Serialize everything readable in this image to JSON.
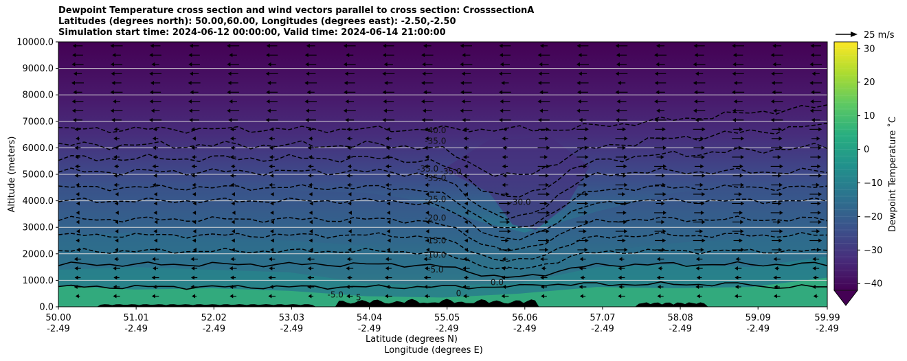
{
  "title_lines": [
    "Dewpoint Temperature cross section and wind vectors parallel to cross section: CrosssectionA",
    "Latitudes (degrees north): 50.00,60.00, Longitudes (degrees east): -2.50,-2.50",
    "Simulation start time: 2024-06-12 00:00:00, Valid time: 2024-06-14 21:00:00"
  ],
  "chart_data": {
    "type": "heatmap",
    "ylabel": "Altitude (meters)",
    "xlabel_line1": "Latitude (degrees N)",
    "xlabel_line2": "Longitude (degrees E)",
    "ylim": [
      0,
      10000
    ],
    "y_ticks": [
      "0.0",
      "1000.0",
      "2000.0",
      "3000.0",
      "4000.0",
      "5000.0",
      "6000.0",
      "7000.0",
      "8000.0",
      "9000.0",
      "10000.0"
    ],
    "x_ticks": [
      {
        "lat": "50.00",
        "lon": "-2.49"
      },
      {
        "lat": "51.01",
        "lon": "-2.49"
      },
      {
        "lat": "52.02",
        "lon": "-2.49"
      },
      {
        "lat": "53.03",
        "lon": "-2.49"
      },
      {
        "lat": "54.04",
        "lon": "-2.49"
      },
      {
        "lat": "55.05",
        "lon": "-2.49"
      },
      {
        "lat": "56.06",
        "lon": "-2.49"
      },
      {
        "lat": "57.07",
        "lon": "-2.49"
      },
      {
        "lat": "58.08",
        "lon": "-2.49"
      },
      {
        "lat": "59.09",
        "lon": "-2.49"
      },
      {
        "lat": "59.99",
        "lon": "-2.49"
      }
    ],
    "colorbar": {
      "label": "Dewpoint Temperature ˚C",
      "ticks": [
        "30",
        "20",
        "10",
        "0",
        "−10",
        "−20",
        "−30",
        "−40"
      ],
      "range": [
        -42,
        32
      ],
      "extend": "min",
      "colors": [
        "#440154",
        "#472d7b",
        "#3b528b",
        "#2c728e",
        "#21918c",
        "#28ae80",
        "#5ec962",
        "#addc30",
        "#fde725"
      ]
    },
    "contour_levels": [
      "-40.0",
      "-35.0",
      "-30.0",
      "-25.0",
      "-20.0",
      "-15.0",
      "-10.0",
      "-5.0",
      "0.0"
    ],
    "contour_labels": [
      {
        "text": "-40.0",
        "x": 54.9,
        "y": 6550
      },
      {
        "text": "-35.0",
        "x": 54.9,
        "y": 6150
      },
      {
        "text": "-35.0",
        "x": 54.8,
        "y": 5100
      },
      {
        "text": "-35.0",
        "x": 55.1,
        "y": 5000
      },
      {
        "text": "-35.0",
        "x": 54.9,
        "y": 4750
      },
      {
        "text": "-30.0",
        "x": 56.0,
        "y": 3850
      },
      {
        "text": "-25.0",
        "x": 54.9,
        "y": 3950
      },
      {
        "text": "-20.0",
        "x": 54.9,
        "y": 3250
      },
      {
        "text": "-15.0",
        "x": 54.9,
        "y": 2400
      },
      {
        "text": "-10.0",
        "x": 54.9,
        "y": 1850
      },
      {
        "text": "-5.0",
        "x": 54.9,
        "y": 1300
      },
      {
        "text": "0.0",
        "x": 55.7,
        "y": 820
      },
      {
        "text": "-5.0",
        "x": 53.6,
        "y": 350
      },
      {
        "text": "5",
        "x": 53.9,
        "y": 250
      },
      {
        "text": "0",
        "x": 55.2,
        "y": 400
      }
    ],
    "wind_legend": {
      "label": "25 m/s"
    },
    "grid": "horizontal"
  }
}
